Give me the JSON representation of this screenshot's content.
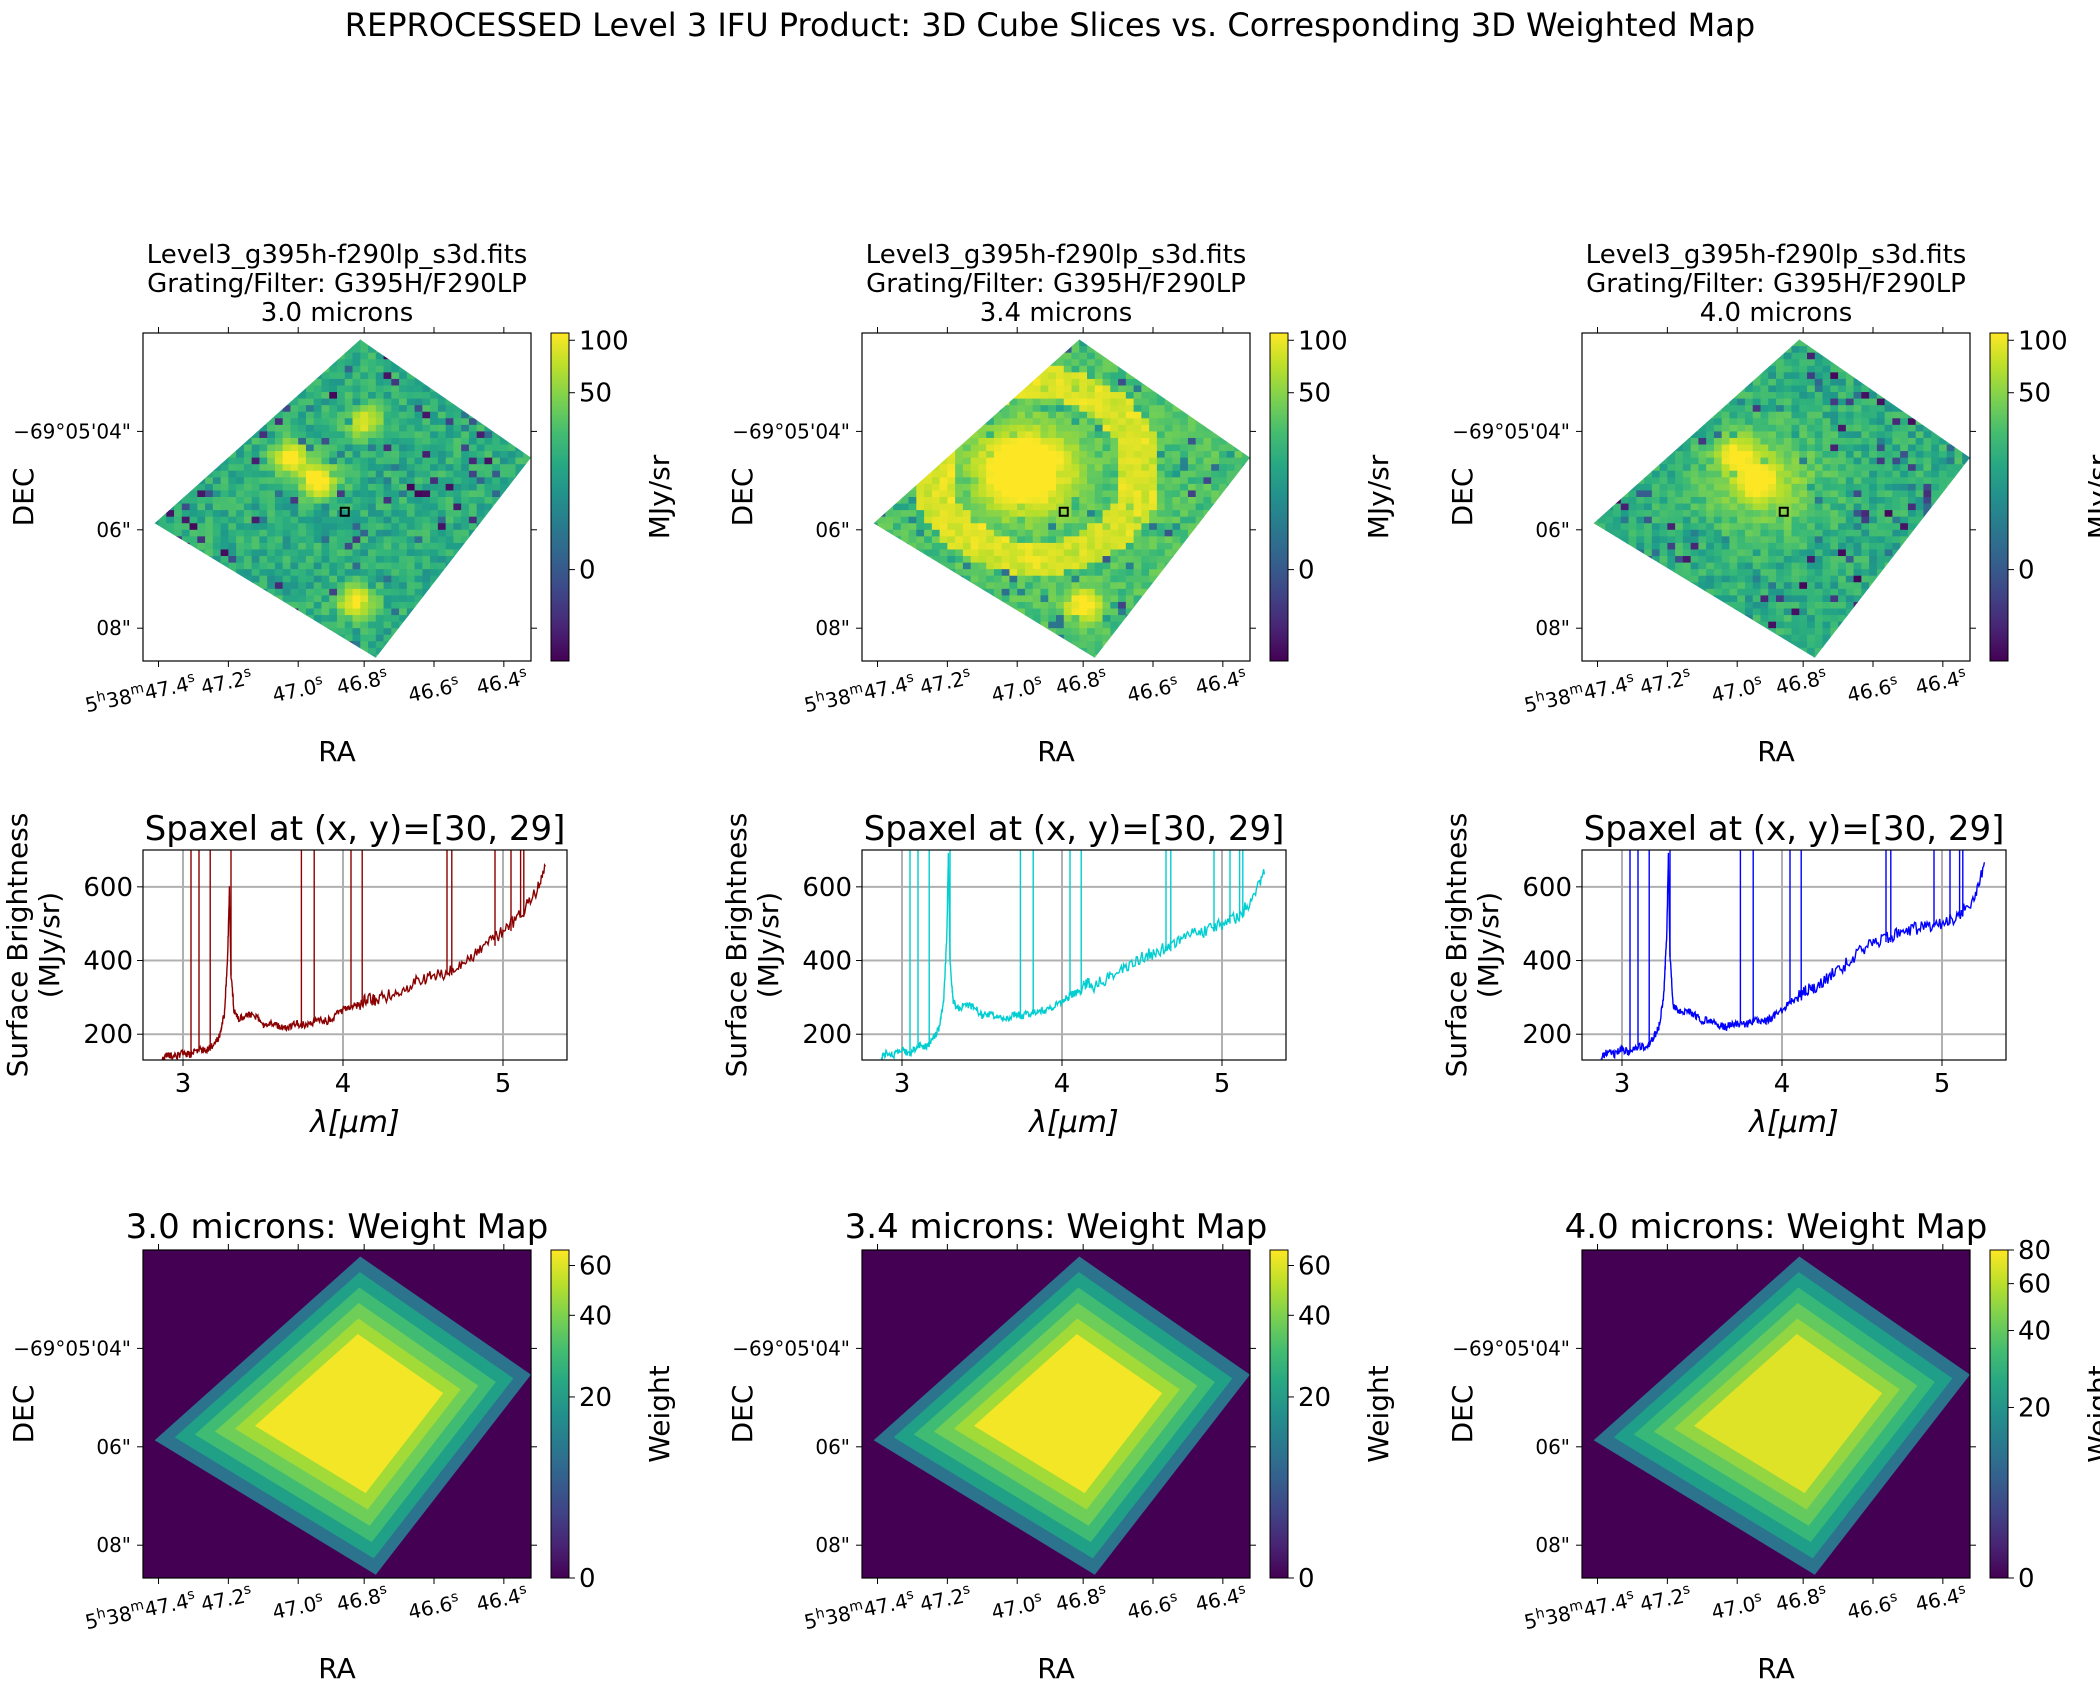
{
  "figure": {
    "suptitle": "REPROCESSED Level 3 IFU Product: 3D Cube Slices vs. Corresponding 3D Weighted Map"
  },
  "colors": {
    "viridis": [
      "#440154",
      "#3b528b",
      "#21918c",
      "#5ec962",
      "#fde725"
    ],
    "spectrum_lines": [
      "#8b0000",
      "#00ced1",
      "#0000ff"
    ],
    "grid": "#b0b0b0"
  },
  "shared_axes": {
    "ra_label": "RA",
    "dec_label": "DEC",
    "ra_ticks": [
      {
        "main": "5",
        "sup1": "h",
        "main2": "38",
        "sup2": "m",
        "main3": "47.4",
        "sup3": "s"
      },
      {
        "main": "47.2",
        "sup": "s"
      },
      {
        "main": "47.0",
        "sup": "s"
      },
      {
        "main": "46.8",
        "sup": "s"
      },
      {
        "main": "46.6",
        "sup": "s"
      },
      {
        "main": "46.4",
        "sup": "s"
      }
    ],
    "dec_ticks": [
      "−69°05'04\"",
      "06\"",
      "08\""
    ]
  },
  "chart_data": [
    {
      "type": "heatmap",
      "panel": "cube-slice-1",
      "title_lines": [
        "Level3_g395h-f290lp_s3d.fits",
        "Grating/Filter: G395H/F290LP",
        "3.0 microns"
      ],
      "wavelength_um": 3.0,
      "colorbar_label": "MJy/sr",
      "colorbar_ticks": [
        "0",
        "50",
        "100"
      ],
      "colorbar_scale": "asinh",
      "colorbar_range": [
        -15,
        110
      ],
      "sources": [
        {
          "x": 0.45,
          "y": 0.55,
          "peak": 120
        },
        {
          "x": 0.38,
          "y": 0.62,
          "peak": 100
        },
        {
          "x": 0.55,
          "y": 0.18,
          "peak": 90
        },
        {
          "x": 0.57,
          "y": 0.73,
          "peak": 70
        }
      ],
      "marked_spaxel": [
        30,
        29
      ]
    },
    {
      "type": "heatmap",
      "panel": "cube-slice-2",
      "title_lines": [
        "Level3_g395h-f290lp_s3d.fits",
        "Grating/Filter: G395H/F290LP",
        "3.4 microns"
      ],
      "wavelength_um": 3.4,
      "colorbar_label": "MJy/sr",
      "colorbar_ticks": [
        "0",
        "50",
        "100"
      ],
      "colorbar_scale": "asinh",
      "colorbar_range": [
        -15,
        110
      ],
      "sources": [
        {
          "x": 0.42,
          "y": 0.58,
          "peak": 150
        },
        {
          "x": 0.57,
          "y": 0.17,
          "peak": 110
        }
      ],
      "marked_spaxel": [
        30,
        29
      ]
    },
    {
      "type": "heatmap",
      "panel": "cube-slice-3",
      "title_lines": [
        "Level3_g395h-f290lp_s3d.fits",
        "Grating/Filter: G395H/F290LP",
        "4.0 microns"
      ],
      "wavelength_um": 4.0,
      "colorbar_label": "MJy/sr",
      "colorbar_ticks": [
        "0",
        "50",
        "100"
      ],
      "colorbar_scale": "asinh",
      "colorbar_range": [
        -15,
        110
      ],
      "sources": [
        {
          "x": 0.45,
          "y": 0.55,
          "peak": 110
        },
        {
          "x": 0.4,
          "y": 0.63,
          "peak": 95
        }
      ],
      "marked_spaxel": [
        30,
        29
      ]
    },
    {
      "type": "line",
      "panel": "spectrum-1",
      "title": "Spaxel at (x, y)=[30, 29]",
      "xlabel": "λ[μm]",
      "ylabel_lines": [
        "Surface Brightness",
        "(MJy/sr)"
      ],
      "xlim": [
        2.75,
        5.4
      ],
      "ylim": [
        130,
        700
      ],
      "xticks": [
        3,
        4,
        5
      ],
      "yticks": [
        200,
        400,
        600
      ],
      "grid": true,
      "series": [
        {
          "color": "#8b0000",
          "x": [
            2.87,
            2.9,
            2.95,
            3.0,
            3.05,
            3.1,
            3.15,
            3.2,
            3.23,
            3.26,
            3.28,
            3.29,
            3.3,
            3.32,
            3.35,
            3.4,
            3.45,
            3.5,
            3.55,
            3.6,
            3.65,
            3.7,
            3.75,
            3.8,
            3.85,
            3.9,
            3.95,
            4.0,
            4.05,
            4.1,
            4.15,
            4.2,
            4.3,
            4.4,
            4.5,
            4.6,
            4.7,
            4.8,
            4.9,
            5.0,
            5.1,
            5.2,
            5.27
          ],
          "y": [
            130,
            145,
            140,
            150,
            145,
            160,
            155,
            175,
            200,
            260,
            420,
            600,
            360,
            260,
            240,
            255,
            250,
            225,
            235,
            220,
            215,
            230,
            225,
            230,
            240,
            235,
            250,
            265,
            275,
            280,
            300,
            290,
            310,
            330,
            350,
            360,
            380,
            410,
            440,
            480,
            520,
            580,
            660
          ]
        }
      ]
    },
    {
      "type": "line",
      "panel": "spectrum-2",
      "title": "Spaxel at (x, y)=[30, 29]",
      "xlabel": "λ[μm]",
      "ylabel_lines": [
        "Surface Brightness",
        "(MJy/sr)"
      ],
      "xlim": [
        2.75,
        5.4
      ],
      "ylim": [
        130,
        700
      ],
      "xticks": [
        3,
        4,
        5
      ],
      "yticks": [
        200,
        400,
        600
      ],
      "grid": true,
      "series": [
        {
          "color": "#00ced1",
          "x": [
            2.87,
            2.9,
            2.95,
            3.0,
            3.05,
            3.1,
            3.15,
            3.2,
            3.23,
            3.26,
            3.28,
            3.29,
            3.3,
            3.32,
            3.35,
            3.4,
            3.45,
            3.5,
            3.55,
            3.6,
            3.65,
            3.7,
            3.75,
            3.8,
            3.85,
            3.9,
            3.95,
            4.0,
            4.05,
            4.1,
            4.15,
            4.2,
            4.3,
            4.4,
            4.5,
            4.6,
            4.7,
            4.8,
            4.9,
            5.0,
            5.1,
            5.2,
            5.27
          ],
          "y": [
            135,
            150,
            145,
            155,
            150,
            170,
            165,
            190,
            215,
            290,
            460,
            690,
            400,
            290,
            270,
            280,
            275,
            250,
            255,
            245,
            240,
            255,
            250,
            255,
            265,
            260,
            275,
            290,
            305,
            315,
            340,
            330,
            355,
            380,
            410,
            425,
            450,
            470,
            480,
            500,
            520,
            570,
            650
          ]
        }
      ]
    },
    {
      "type": "line",
      "panel": "spectrum-3",
      "title": "Spaxel at (x, y)=[30, 29]",
      "xlabel": "λ[μm]",
      "ylabel_lines": [
        "Surface Brightness",
        "(MJy/sr)"
      ],
      "xlim": [
        2.75,
        5.4
      ],
      "ylim": [
        130,
        700
      ],
      "xticks": [
        3,
        4,
        5
      ],
      "yticks": [
        200,
        400,
        600
      ],
      "grid": true,
      "series": [
        {
          "color": "#0000ff",
          "x": [
            2.87,
            2.9,
            2.95,
            3.0,
            3.05,
            3.1,
            3.15,
            3.2,
            3.23,
            3.26,
            3.28,
            3.29,
            3.3,
            3.32,
            3.35,
            3.4,
            3.45,
            3.5,
            3.55,
            3.6,
            3.65,
            3.7,
            3.75,
            3.8,
            3.85,
            3.9,
            3.95,
            4.0,
            4.05,
            4.1,
            4.15,
            4.2,
            4.3,
            4.4,
            4.5,
            4.6,
            4.7,
            4.8,
            4.9,
            5.0,
            5.1,
            5.2,
            5.27
          ],
          "y": [
            135,
            150,
            145,
            160,
            150,
            170,
            165,
            195,
            220,
            300,
            470,
            690,
            410,
            280,
            260,
            265,
            255,
            235,
            240,
            225,
            220,
            230,
            225,
            230,
            240,
            235,
            250,
            265,
            285,
            300,
            320,
            320,
            360,
            390,
            430,
            450,
            470,
            485,
            490,
            500,
            520,
            570,
            660
          ]
        }
      ]
    },
    {
      "type": "heatmap",
      "panel": "weight-map-1",
      "title": "3.0 microns: Weight Map",
      "colorbar_label": "Weight",
      "colorbar_ticks": [
        "0",
        "20",
        "40",
        "60"
      ],
      "colorbar_scale": "asinh",
      "colorbar_range": [
        0,
        68
      ],
      "plateau_weight": 65
    },
    {
      "type": "heatmap",
      "panel": "weight-map-2",
      "title": "3.4 microns: Weight Map",
      "colorbar_label": "Weight",
      "colorbar_ticks": [
        "0",
        "20",
        "40",
        "60"
      ],
      "colorbar_scale": "asinh",
      "colorbar_range": [
        0,
        68
      ],
      "plateau_weight": 65
    },
    {
      "type": "heatmap",
      "panel": "weight-map-3",
      "title": "4.0 microns: Weight Map",
      "colorbar_label": "Weight",
      "colorbar_ticks": [
        "0",
        "20",
        "40",
        "60",
        "80"
      ],
      "colorbar_scale": "asinh",
      "colorbar_range": [
        0,
        80
      ],
      "plateau_weight": 70
    }
  ]
}
